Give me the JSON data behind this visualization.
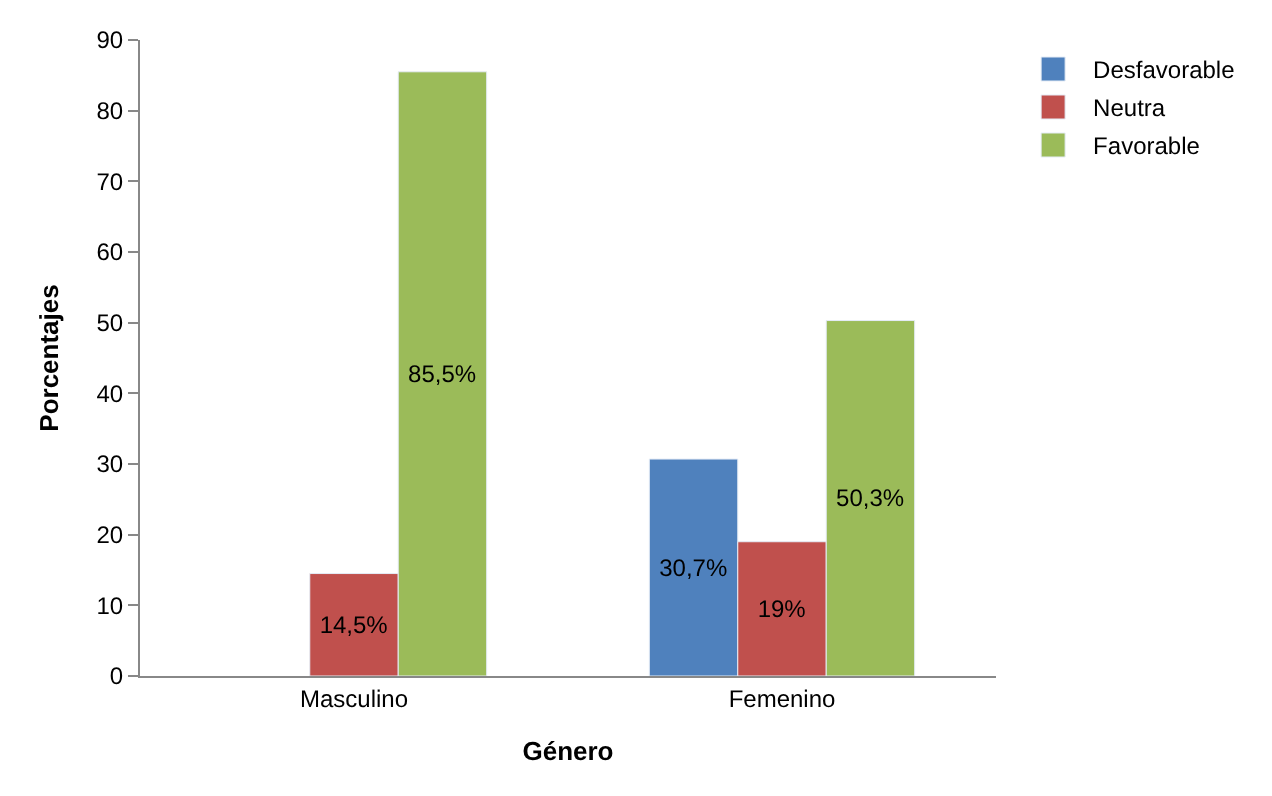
{
  "chart_data": {
    "type": "bar",
    "xlabel": "Género",
    "ylabel": "Porcentajes",
    "categories": [
      "Masculino",
      "Femenino"
    ],
    "series": [
      {
        "name": "Desfavorable",
        "color": "#4f81bd",
        "values": [
          null,
          30.7
        ],
        "value_labels": [
          null,
          "30,7%"
        ]
      },
      {
        "name": "Neutra",
        "color": "#c0504d",
        "values": [
          14.5,
          19
        ],
        "value_labels": [
          "14,5%",
          "19%"
        ]
      },
      {
        "name": "Favorable",
        "color": "#9bbb59",
        "values": [
          85.5,
          50.3
        ],
        "value_labels": [
          "85,5%",
          "50,3%"
        ]
      }
    ],
    "ylim": [
      0,
      90
    ],
    "yticks": [
      0,
      10,
      20,
      30,
      40,
      50,
      60,
      70,
      80,
      90
    ],
    "grid": false,
    "legend": "top right"
  }
}
